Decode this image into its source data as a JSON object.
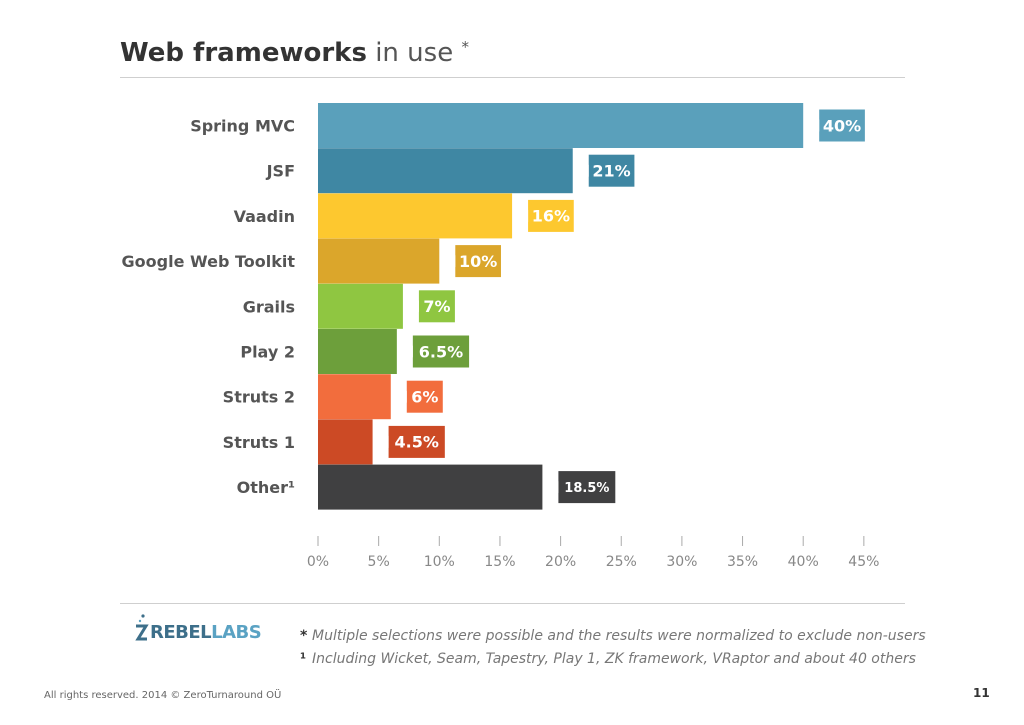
{
  "header": {
    "title_bold": "Web frameworks",
    "title_light": "in use",
    "title_mark": "*"
  },
  "chart_data": {
    "type": "bar",
    "orientation": "horizontal",
    "categories": [
      "Spring MVC",
      "JSF",
      "Vaadin",
      "Google Web Toolkit",
      "Grails",
      "Play 2",
      "Struts 2",
      "Struts 1",
      "Other"
    ],
    "category_marks": [
      "",
      "",
      "",
      "",
      "",
      "",
      "",
      "",
      "¹"
    ],
    "values": [
      40,
      21,
      16,
      10,
      7,
      6.5,
      6,
      4.5,
      18.5
    ],
    "value_labels": [
      "40%",
      "21%",
      "16%",
      "10%",
      "7%",
      "6.5%",
      "6%",
      "4.5%",
      "18.5%"
    ],
    "colors": [
      "#5aa0bb",
      "#3f87a3",
      "#fdc82f",
      "#dba62b",
      "#8fc641",
      "#6d9f3b",
      "#f26d3d",
      "#cc4a25",
      "#404041"
    ],
    "ticks": [
      "0%",
      "5%",
      "10%",
      "15%",
      "20%",
      "25%",
      "30%",
      "35%",
      "40%",
      "45%"
    ],
    "xlim": [
      0,
      45
    ],
    "title": "Web frameworks in use *",
    "xlabel": "",
    "ylabel": "",
    "grid": false,
    "legend": "none"
  },
  "logo": {
    "text_main": "REBEL",
    "text_sub": "LABS"
  },
  "footnotes": [
    {
      "mark": "*",
      "text": "Multiple selections were possible and the results were normalized to exclude non-users"
    },
    {
      "mark": "¹",
      "text": "Including Wicket, Seam, Tapestry, Play 1, ZK framework, VRaptor and about 40 others"
    }
  ],
  "footer": {
    "copyright": "All rights reserved. 2014 © ZeroTurnaround OÜ",
    "page_number": "11"
  }
}
